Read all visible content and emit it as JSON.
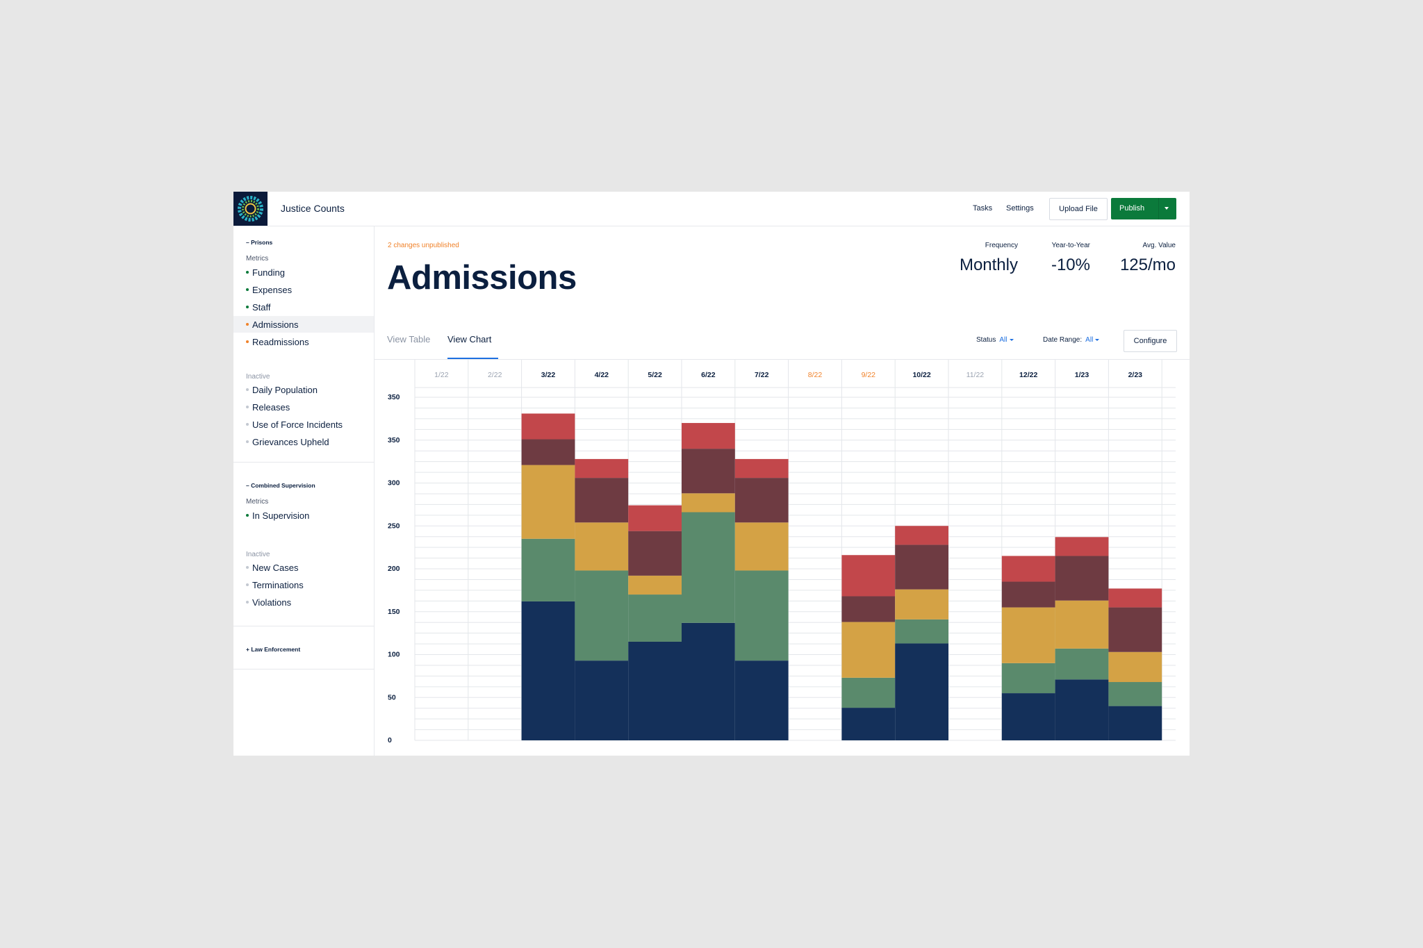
{
  "app": {
    "title": "Justice Counts",
    "nav": {
      "tasks": "Tasks",
      "settings": "Settings"
    },
    "upload_label": "Upload File",
    "publish_label": "Publish"
  },
  "sidebar": {
    "prisons": {
      "header": "– Prisons",
      "metrics_label": "Metrics",
      "metrics": [
        {
          "label": "Funding",
          "status": "published"
        },
        {
          "label": "Expenses",
          "status": "published"
        },
        {
          "label": "Staff",
          "status": "published"
        },
        {
          "label": "Admissions",
          "status": "unpublished",
          "active": true
        },
        {
          "label": "Readmissions",
          "status": "unpublished"
        }
      ],
      "inactive_label": "Inactive",
      "inactive": [
        {
          "label": "Daily Population"
        },
        {
          "label": "Releases"
        },
        {
          "label": "Use of Force Incidents"
        },
        {
          "label": "Grievances Upheld"
        }
      ]
    },
    "combined": {
      "header": "– Combined Supervision",
      "metrics_label": "Metrics",
      "metrics": [
        {
          "label": "In Supervision",
          "status": "published"
        }
      ],
      "inactive_label": "Inactive",
      "inactive": [
        {
          "label": "New Cases"
        },
        {
          "label": "Terminations"
        },
        {
          "label": "Violations"
        }
      ]
    },
    "law": {
      "header": "+ Law Enforcement"
    }
  },
  "main": {
    "unpublished_note": "2 changes unpublished",
    "title": "Admissions",
    "stats": [
      {
        "label": "Frequency",
        "value": "Monthly"
      },
      {
        "label": "Year-to-Year",
        "value": "-10%"
      },
      {
        "label": "Avg. Value",
        "value": "125/mo"
      }
    ],
    "tabs": {
      "table": "View Table",
      "chart": "View Chart"
    },
    "filters": {
      "status_label": "Status",
      "status_value": "All",
      "date_label": "Date Range:",
      "date_value": "All"
    },
    "configure_label": "Configure"
  },
  "colors": {
    "published_dot": "#0b7a3b",
    "unpublished_dot": "#f0822a",
    "inactive_dot": "#c3c8d1",
    "publish_button": "#0b7a3b",
    "link_blue": "#1d6fe0"
  },
  "chart_data": {
    "type": "bar",
    "stacked": true,
    "categories": [
      "1/22",
      "2/22",
      "3/22",
      "4/22",
      "5/22",
      "6/22",
      "7/22",
      "8/22",
      "9/22",
      "10/22",
      "11/22",
      "12/22",
      "1/23",
      "2/23"
    ],
    "category_status": [
      "faded",
      "faded",
      "normal",
      "normal",
      "normal",
      "normal",
      "normal",
      "highlight",
      "highlight",
      "normal",
      "faded",
      "normal",
      "normal",
      "normal"
    ],
    "y_tick_labels": [
      "0",
      "50",
      "100",
      "150",
      "200",
      "250",
      "300",
      "350",
      "350"
    ],
    "ylim": [
      0,
      400
    ],
    "grid": true,
    "series": [
      {
        "color": "#14305a",
        "values": [
          0,
          0,
          162,
          93,
          115,
          137,
          93,
          0,
          38,
          113,
          0,
          55,
          71,
          40
        ]
      },
      {
        "color": "#5a8a6c",
        "values": [
          0,
          0,
          73,
          105,
          55,
          129,
          105,
          0,
          35,
          28,
          0,
          35,
          36,
          28
        ]
      },
      {
        "color": "#d4a245",
        "values": [
          0,
          0,
          86,
          56,
          22,
          22,
          56,
          0,
          65,
          35,
          0,
          65,
          56,
          35
        ]
      },
      {
        "color": "#6e3b42",
        "values": [
          0,
          0,
          30,
          52,
          52,
          52,
          52,
          0,
          30,
          52,
          0,
          30,
          52,
          52
        ]
      },
      {
        "color": "#c2474b",
        "values": [
          0,
          0,
          30,
          22,
          30,
          30,
          22,
          0,
          48,
          22,
          0,
          30,
          22,
          22
        ]
      }
    ]
  }
}
